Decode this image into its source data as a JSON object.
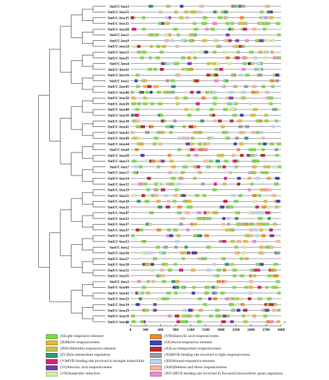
{
  "genes": [
    "SmUC-box3",
    "SmUC-box51",
    "SmUC-box35",
    "SmUC-box21",
    "SmUC-box28",
    "SmUC-box5",
    "SmUC-box9",
    "SmUC-box24",
    "SmUC-box12",
    "SmUC-box25",
    "SmUC-box4",
    "SmUC-box11",
    "SmUC-box16",
    "SmUC-box1",
    "SmUC-box45",
    "SmUC-box46",
    "SmUC-box50",
    "SmUC-box26",
    "SmUC-box48",
    "SmUC-box36",
    "SmUC-box38",
    "SmUC-box41",
    "SmUC-box43",
    "SmUC-box49",
    "SmUC-box44",
    "SmUC-box8",
    "SmUC-box20",
    "SmUC-box13",
    "SmUC-box7",
    "SmUC-box17",
    "SmUC-box14",
    "SmUC-box32",
    "SmUC-box19",
    "SmUC-box15",
    "SmUC-box18",
    "SmUC-box31",
    "SmUC-box47",
    "SmUC-box23",
    "SmUC-box27",
    "SmUC-box37",
    "SmUC-box39",
    "SmUC-box53",
    "SmUC-box2",
    "SmUC-box56",
    "SmUC-box57",
    "SmUC-box58",
    "SmUC-box52",
    "SmUC-box55",
    "SmUC-box3",
    "SmUC-box60",
    "SmUC-box42",
    "SmUC-box22",
    "SmUC-box34",
    "SmUC-box29",
    "SmUC-box10",
    "SmUC-box40"
  ],
  "axis": {
    "ticks": [
      "0",
      "300",
      "600",
      "900",
      "1200",
      "1500",
      "1800",
      "2100",
      "2400",
      "2700",
      "3000"
    ],
    "min": 0,
    "max": 3000,
    "start_mark": "5'",
    "end_mark": "3'"
  },
  "legend": [
    {
      "label": "(I)Light responsive element",
      "color": "#7fdc4a"
    },
    {
      "label": "(II)MeJA-responsiveness",
      "color": "#f2b533"
    },
    {
      "label": "(III)Gibberellin-responsive element",
      "color": "#c5c84a"
    },
    {
      "label": "(IV)Zein metabolism regulation",
      "color": "#2f9e6e"
    },
    {
      "label": "(V)MYB binding site involved in drought-inducibility",
      "color": "#d9217a"
    },
    {
      "label": "(VI)Abscisic acid responsiveness",
      "color": "#7b3fa8"
    },
    {
      "label": "(VII)Anaerobic induction",
      "color": "#d6f0a8"
    },
    {
      "label": "(VIII)Salicylic acid responsiveness",
      "color": "#f08a2a"
    },
    {
      "label": "(IX)Auxin-responsive element",
      "color": "#3e3fbf"
    },
    {
      "label": "(X)Low-temperature responsiveness",
      "color": "#c1272d"
    },
    {
      "label": "(XI)MYB binding site involved in light responsiveness",
      "color": "#9aa0a6"
    },
    {
      "label": "(XII)Wound-responsive element",
      "color": "#b8d8f0"
    },
    {
      "label": "(XIII)Defense and stress responsiveness",
      "color": "#f5b6a0"
    },
    {
      "label": "(XIV)MYB binding site involved in flavonoid biosynthetic genes regulation",
      "color": "#f08ad0"
    }
  ]
}
